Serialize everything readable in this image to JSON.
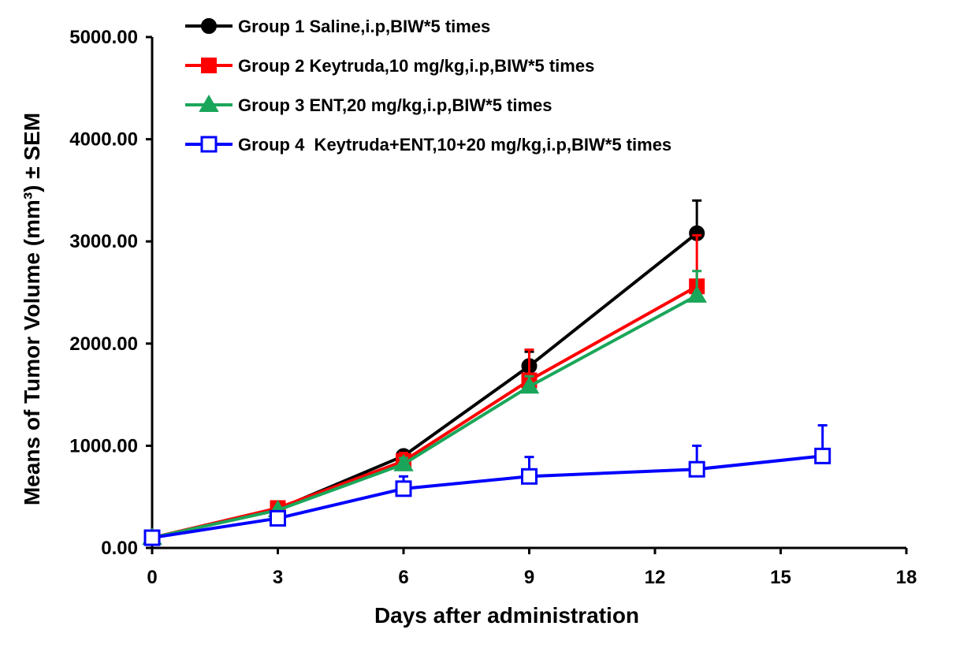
{
  "chart_data": {
    "type": "line",
    "title": "",
    "xlabel": "Days after administration",
    "ylabel": "Means of Tumor Volume (mm³) ± SEM",
    "xlim": [
      0,
      18
    ],
    "ylim": [
      0,
      5000
    ],
    "x_ticks": [
      "0",
      "3",
      "6",
      "9",
      "12",
      "15",
      "18"
    ],
    "y_ticks": [
      "0.00",
      "1000.00",
      "2000.00",
      "3000.00",
      "4000.00",
      "5000.00"
    ],
    "legend_position": "top",
    "grid": false,
    "series": [
      {
        "name": "Group 1 Saline,i.p,BIW*5 times",
        "color": "#000000",
        "marker": "filled-circle",
        "x": [
          0,
          3,
          6,
          9,
          13
        ],
        "values": [
          100,
          380,
          900,
          1780,
          3080
        ],
        "error": [
          0,
          20,
          40,
          140,
          320
        ]
      },
      {
        "name": "Group 2 Keytruda,10 mg/kg,i.p,BIW*5 times",
        "color": "#ff0000",
        "marker": "filled-square",
        "x": [
          0,
          3,
          6,
          9,
          13
        ],
        "values": [
          100,
          390,
          850,
          1640,
          2560
        ],
        "error": [
          0,
          20,
          80,
          300,
          500
        ]
      },
      {
        "name": "Group 3 ENT,20 mg/kg,i.p,BIW*5 times",
        "color": "#1aa65a",
        "marker": "filled-triangle",
        "x": [
          0,
          3,
          6,
          9,
          13
        ],
        "values": [
          100,
          370,
          820,
          1580,
          2470
        ],
        "error": [
          0,
          20,
          60,
          100,
          240
        ]
      },
      {
        "name": "Group 4  Keytruda+ENT,10+20 mg/kg,i.p,BIW*5 times",
        "color": "#0000ff",
        "marker": "open-square",
        "x": [
          0,
          3,
          6,
          9,
          13,
          16
        ],
        "values": [
          100,
          290,
          580,
          700,
          770,
          900
        ],
        "error": [
          0,
          40,
          120,
          190,
          230,
          300
        ]
      }
    ]
  }
}
